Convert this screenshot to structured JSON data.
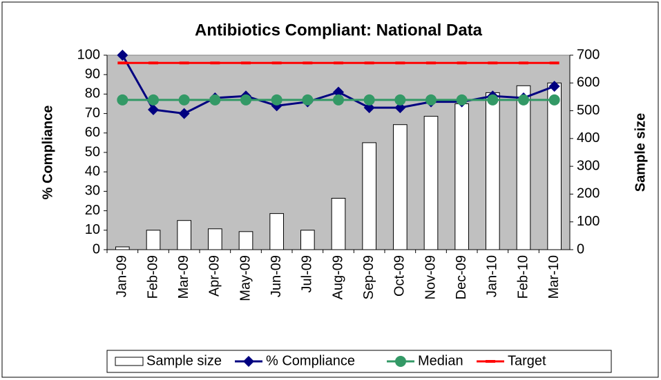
{
  "chart_data": {
    "type": "bar-line",
    "title": "Antibiotics Compliant: National Data",
    "y_label": "% Compliance",
    "y2_label": "Sample size",
    "categories": [
      "Jan-09",
      "Feb-09",
      "Mar-09",
      "Apr-09",
      "May-09",
      "Jun-09",
      "Jul-09",
      "Aug-09",
      "Sep-09",
      "Oct-09",
      "Nov-09",
      "Dec-09",
      "Jan-10",
      "Feb-10",
      "Mar-10"
    ],
    "ylim": [
      0,
      100
    ],
    "yticks": [
      0,
      10,
      20,
      30,
      40,
      50,
      60,
      70,
      80,
      90,
      100
    ],
    "y2lim": [
      0,
      700
    ],
    "y2ticks": [
      0,
      100,
      200,
      300,
      400,
      500,
      600,
      700
    ],
    "plot_background": "#c0c0c0",
    "series": [
      {
        "name": "Sample size",
        "type": "bar",
        "axis": "y2",
        "color": "#ffffff",
        "values": [
          10,
          70,
          105,
          75,
          65,
          130,
          70,
          185,
          385,
          450,
          480,
          525,
          565,
          590,
          600
        ]
      },
      {
        "name": "% Compliance",
        "type": "line",
        "marker": "diamond",
        "color": "#000080",
        "values": [
          100,
          72,
          70,
          78,
          79,
          74,
          76,
          81,
          73,
          73,
          76,
          76,
          79,
          78,
          84
        ]
      },
      {
        "name": "Median",
        "type": "line",
        "marker": "circle",
        "color": "#339966",
        "values": [
          77,
          77,
          77,
          77,
          77,
          77,
          77,
          77,
          77,
          77,
          77,
          77,
          77,
          77,
          77
        ]
      },
      {
        "name": "Target",
        "type": "line",
        "marker": "dash",
        "color": "#ff0000",
        "values": [
          96,
          96,
          96,
          96,
          96,
          96,
          96,
          96,
          96,
          96,
          96,
          96,
          96,
          96,
          96
        ]
      }
    ]
  }
}
